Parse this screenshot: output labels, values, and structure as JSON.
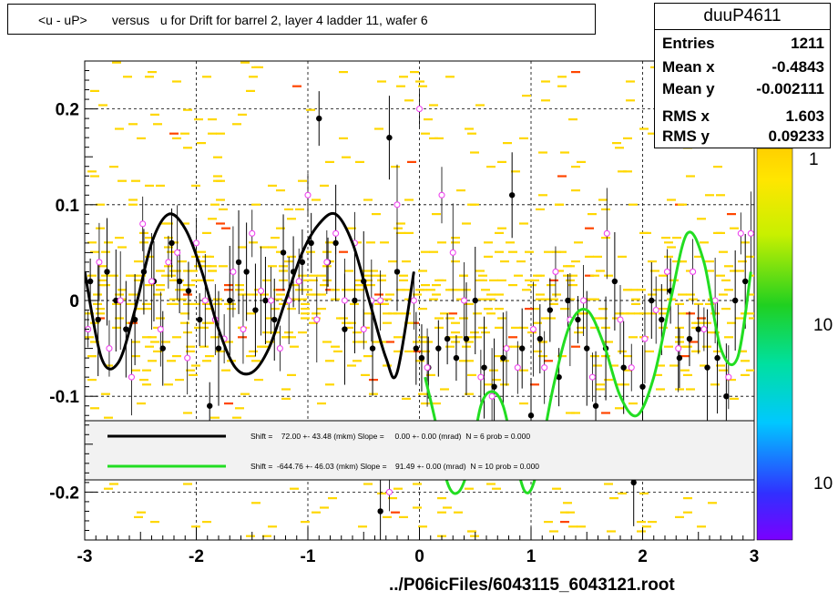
{
  "title": "<u - uP>       versus   u for Drift for barrel 2, layer 4 ladder 11, wafer 6",
  "stats": {
    "name": "duuP4611",
    "rows": [
      {
        "key": "Entries",
        "value": "1211"
      },
      {
        "key": "Mean x",
        "value": "-0.4843"
      },
      {
        "key": "Mean y",
        "value": "-0.002111"
      },
      {
        "key": "RMS x",
        "value": "1.603"
      },
      {
        "key": "RMS y",
        "value": "0.09233"
      }
    ]
  },
  "footer": "../P06icFiles/6043115_6043121.root",
  "legend": [
    {
      "text": "Shift =    72.00 +- 43.48 (mkm) Slope =     0.00 +- 0.00 (mrad)  N = 6 prob = 0.000",
      "color": "#000000"
    },
    {
      "text": "Shift =  -644.76 +- 46.03 (mkm) Slope =    91.49 +- 0.00 (mrad)  N = 10 prob = 0.000",
      "color": "#22dd22"
    }
  ],
  "palette_labels": [
    "1",
    "10",
    "10"
  ],
  "colors": {
    "black_fit": "#000000",
    "green_fit": "#22dd22",
    "cells_main": "#ffd700",
    "cells_high": "#ff4500",
    "open_markers": "#ee44ee"
  },
  "chart_data": {
    "type": "scatter",
    "title": "<u - uP>       versus   u for Drift for barrel 2, layer 4 ladder 11, wafer 6",
    "xlabel": "",
    "ylabel": "",
    "xlim": [
      -3,
      3
    ],
    "ylim": [
      -0.25,
      0.25
    ],
    "xticks": [
      -3,
      -2,
      -1,
      0,
      1,
      2,
      3
    ],
    "yticks": [
      -0.2,
      -0.1,
      0,
      0.1,
      0.2
    ],
    "grid": true,
    "series": [
      {
        "marker": "filled-circle",
        "x": [
          -2.95,
          -2.88,
          -2.8,
          -2.72,
          -2.63,
          -2.55,
          -2.47,
          -2.38,
          -2.3,
          -2.22,
          -2.15,
          -2.07,
          -1.97,
          -1.88,
          -1.8,
          -1.7,
          -1.62,
          -1.55,
          -1.47,
          -1.38,
          -1.3,
          -1.22,
          -1.13,
          -1.05,
          -0.97,
          -0.9,
          -0.82,
          -0.75,
          -0.67,
          -0.58,
          -0.5,
          -0.42,
          -0.35,
          -0.27,
          -0.2,
          -0.03,
          0.02,
          0.08,
          0.17,
          0.25,
          0.33,
          0.42,
          0.5,
          0.58,
          0.67,
          0.75,
          0.83,
          0.92,
          1.0,
          1.08,
          1.17,
          1.25,
          1.33,
          1.42,
          1.5,
          1.58,
          1.67,
          1.75,
          1.83,
          1.92,
          2.0,
          2.08,
          2.17,
          2.25,
          2.33,
          2.42,
          2.5,
          2.58,
          2.67,
          2.75,
          2.83,
          2.92
        ],
        "y": [
          0.02,
          -0.02,
          0.03,
          0.0,
          -0.03,
          -0.02,
          0.03,
          0.02,
          -0.05,
          0.06,
          0.02,
          0.01,
          -0.02,
          -0.11,
          -0.05,
          0.0,
          0.04,
          0.03,
          -0.01,
          0.0,
          -0.02,
          0.05,
          0.03,
          0.04,
          0.06,
          0.19,
          0.04,
          0.06,
          -0.03,
          0.0,
          0.02,
          -0.05,
          -0.22,
          0.17,
          0.03,
          -0.05,
          -0.06,
          -0.07,
          -0.05,
          -0.04,
          -0.06,
          -0.04,
          0.0,
          -0.07,
          -0.09,
          -0.06,
          0.11,
          -0.05,
          -0.12,
          -0.04,
          -0.01,
          -0.08,
          0.0,
          -0.02,
          -0.05,
          -0.11,
          -0.05,
          0.02,
          -0.07,
          -0.19,
          -0.09,
          0.0,
          -0.02,
          0.01,
          -0.06,
          -0.04,
          -0.03,
          -0.07,
          -0.06,
          -0.1,
          0.0,
          0.02
        ]
      },
      {
        "marker": "open-circle",
        "x": [
          -2.97,
          -2.87,
          -2.78,
          -2.68,
          -2.58,
          -2.48,
          -2.4,
          -2.32,
          -2.25,
          -2.17,
          -2.08,
          -2.0,
          -1.92,
          -1.83,
          -1.75,
          -1.67,
          -1.58,
          -1.5,
          -1.42,
          -1.33,
          -1.25,
          -1.17,
          -1.08,
          -1.0,
          -0.92,
          -0.83,
          -0.75,
          -0.67,
          -0.58,
          -0.5,
          -0.43,
          -0.35,
          -0.27,
          -0.2,
          -0.05,
          0.0,
          0.07,
          0.2,
          0.3,
          0.4,
          0.55,
          0.65,
          0.78,
          0.88,
          1.02,
          1.12,
          1.22,
          1.35,
          1.47,
          1.55,
          1.68,
          1.8,
          1.9,
          2.02,
          2.12,
          2.22,
          2.32,
          2.45,
          2.55,
          2.65,
          2.77,
          2.88,
          2.97
        ],
        "y": [
          -0.03,
          0.04,
          -0.05,
          0.0,
          -0.08,
          0.08,
          0.02,
          -0.03,
          0.04,
          0.05,
          -0.06,
          0.06,
          0.0,
          -0.02,
          -0.04,
          0.03,
          -0.03,
          0.07,
          0.01,
          0.0,
          -0.05,
          0.0,
          0.02,
          0.11,
          -0.02,
          0.04,
          0.07,
          0.0,
          0.06,
          -0.03,
          0.0,
          0.0,
          -0.2,
          0.1,
          0.0,
          0.2,
          -0.07,
          0.11,
          0.05,
          0.0,
          -0.08,
          -0.1,
          -0.05,
          -0.07,
          -0.03,
          -0.07,
          0.03,
          -0.02,
          0.0,
          -0.08,
          0.07,
          -0.02,
          -0.07,
          -0.04,
          -0.01,
          0.03,
          -0.05,
          0.03,
          -0.03,
          0.0,
          -0.08,
          0.07,
          0.07
        ]
      }
    ],
    "fits": [
      {
        "color": "#000000",
        "x": [
          -3.0,
          -2.85,
          -2.7,
          -2.55,
          -2.4,
          -2.25,
          -2.1,
          -1.95,
          -1.8,
          -1.65,
          -1.5,
          -1.35,
          -1.2,
          -1.05,
          -0.9,
          -0.75,
          -0.6,
          -0.45,
          -0.3,
          -0.2,
          -0.05
        ],
        "y": [
          0.03,
          -0.06,
          -0.065,
          -0.01,
          0.06,
          0.09,
          0.075,
          0.03,
          -0.03,
          -0.07,
          -0.075,
          -0.05,
          0.0,
          0.05,
          0.08,
          0.09,
          0.06,
          0.0,
          -0.06,
          -0.075,
          0.03
        ]
      },
      {
        "color": "#22dd22",
        "x": [
          0.05,
          0.15,
          0.25,
          0.35,
          0.45,
          0.55,
          0.65,
          0.75,
          0.85,
          0.95,
          1.05,
          1.2,
          1.35,
          1.5,
          1.65,
          1.8,
          1.95,
          2.1,
          2.25,
          2.4,
          2.55,
          2.7,
          2.85,
          2.97
        ],
        "y": [
          -0.08,
          -0.13,
          -0.19,
          -0.2,
          -0.17,
          -0.11,
          -0.095,
          -0.11,
          -0.16,
          -0.2,
          -0.18,
          -0.09,
          -0.025,
          -0.01,
          -0.045,
          -0.1,
          -0.12,
          -0.08,
          0.0,
          0.07,
          0.04,
          -0.05,
          -0.06,
          0.03
        ]
      }
    ]
  }
}
